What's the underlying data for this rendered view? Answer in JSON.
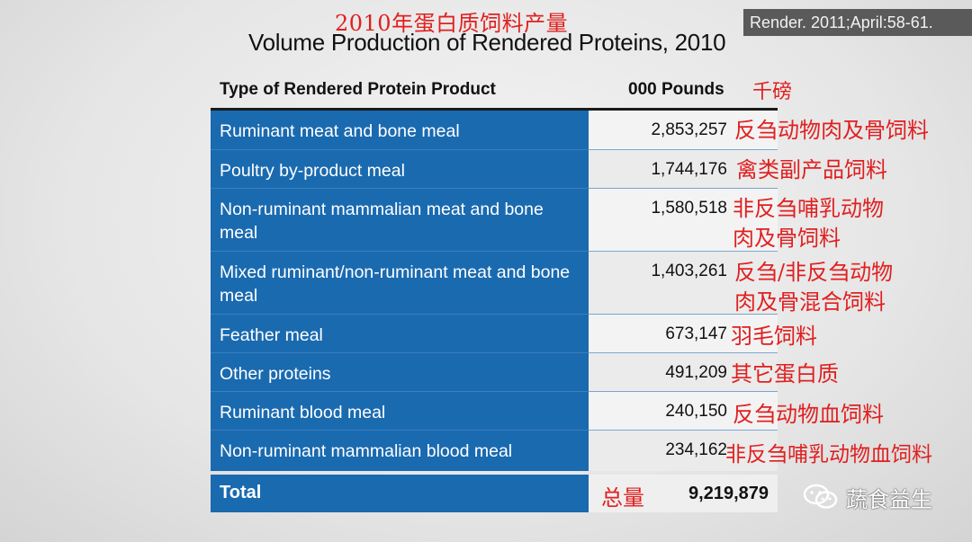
{
  "titles": {
    "cn": "2010年蛋白质饲料产量",
    "en": "Volume Production of Rendered Proteins, 2010",
    "source": "Render. 2011;April:58-61."
  },
  "header": {
    "type_label": "Type of Rendered Protein Product",
    "pounds_label": "000 Pounds",
    "unit_cn": "千磅"
  },
  "rows": [
    {
      "name": "Ruminant meat and bone meal",
      "value": "2,853,257",
      "cn": "反刍动物肉及骨饲料"
    },
    {
      "name": "Poultry by-product meal",
      "value": "1,744,176",
      "cn": "禽类副产品饲料"
    },
    {
      "name": "Non-ruminant mammalian meat and bone meal",
      "value": "1,580,518",
      "cn_line1": "非反刍哺乳动物",
      "cn_line2": "肉及骨饲料"
    },
    {
      "name": "Mixed ruminant/non-ruminant meat and bone meal",
      "value": "1,403,261",
      "cn_line1": "反刍/非反刍动物",
      "cn_line2": "肉及骨混合饲料"
    },
    {
      "name": "Feather meal",
      "value": "673,147",
      "cn": "羽毛饲料"
    },
    {
      "name": "Other proteins",
      "value": "491,209",
      "cn": "其它蛋白质"
    },
    {
      "name": "Ruminant blood meal",
      "value": "240,150",
      "cn": "反刍动物血饲料"
    },
    {
      "name": "Non-ruminant mammalian blood meal",
      "value": "234,162",
      "cn": "非反刍哺乳动物血饲料"
    }
  ],
  "total": {
    "label": "Total",
    "value": "9,219,879",
    "cn": "总量"
  },
  "watermark": {
    "text": "蔬食益生",
    "icon": "wechat-icon"
  }
}
